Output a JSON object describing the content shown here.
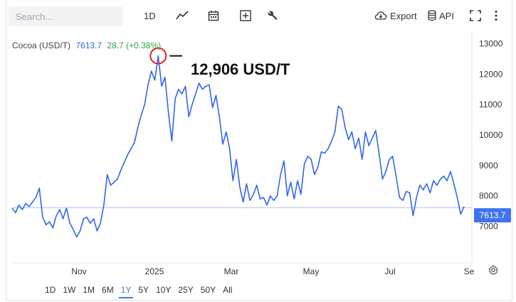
{
  "toolbar": {
    "search_placeholder": "Search...",
    "interval_label": "1D",
    "export_label": "Export",
    "api_label": "API",
    "icons": [
      "line-chart-icon",
      "calendar-icon",
      "add-icon",
      "wrench-icon",
      "cloud-download-icon",
      "database-icon",
      "fullscreen-icon",
      "more-vertical-icon"
    ]
  },
  "legend": {
    "symbol": "Cocoa (USD/T)",
    "last": "7613.7",
    "change": "28.7 (+0.38%)",
    "change_color": "#2aa44a",
    "last_color": "#3366ee"
  },
  "annotation": {
    "label": "12,906 USD/T",
    "highlight_color": "#e02020"
  },
  "price_tag": "7613.7",
  "range_buttons": [
    "1D",
    "1W",
    "1M",
    "6M",
    "1Y",
    "5Y",
    "10Y",
    "25Y",
    "50Y",
    "All"
  ],
  "active_range": "1Y",
  "chart_data": {
    "type": "line",
    "title": "",
    "xlabel": "",
    "ylabel": "",
    "x_tick_labels": [
      "Nov",
      "2025",
      "Mar",
      "May",
      "Jul",
      "Se"
    ],
    "y_tick_labels": [
      "7000",
      "8000",
      "9000",
      "10000",
      "11000",
      "12000",
      "13000"
    ],
    "ylim": [
      5800,
      13500
    ],
    "grid": false,
    "line_color": "#3366ee",
    "last_value": 7613.7,
    "peak_value": 12906,
    "series": [
      {
        "name": "Cocoa (USD/T)",
        "values": [
          7600,
          7450,
          7700,
          7550,
          7750,
          7650,
          7800,
          7950,
          8250,
          7300,
          7050,
          7150,
          6950,
          7350,
          7550,
          7250,
          7600,
          7100,
          6900,
          6650,
          6850,
          7250,
          7300,
          7100,
          7250,
          6850,
          7100,
          7700,
          8700,
          8350,
          8450,
          8550,
          8850,
          9100,
          9350,
          9550,
          9750,
          10250,
          10650,
          11000,
          11650,
          12100,
          11800,
          12600,
          11600,
          11900,
          10750,
          9800,
          11200,
          11500,
          11350,
          11600,
          10600,
          11000,
          11350,
          11700,
          11500,
          11600,
          11650,
          10900,
          11300,
          10600,
          9700,
          10100,
          9550,
          8500,
          9200,
          8300,
          7800,
          8400,
          7850,
          8050,
          8350,
          7900,
          7950,
          7700,
          8000,
          7850,
          8000,
          8700,
          9150,
          8000,
          8450,
          7900,
          8500,
          8050,
          9050,
          9300,
          9200,
          8700,
          8950,
          9450,
          9400,
          9550,
          9800,
          10100,
          10950,
          10850,
          10250,
          9850,
          10100,
          9550,
          9900,
          9200,
          10100,
          9650,
          9900,
          10150,
          9400,
          8550,
          8800,
          9200,
          9300,
          8650,
          7950,
          7850,
          8150,
          8100,
          7350,
          7950,
          8350,
          8200,
          8400,
          8100,
          8500,
          8350,
          8550,
          8650,
          8500,
          8800,
          8400,
          7950,
          7400,
          7650
        ]
      }
    ]
  }
}
